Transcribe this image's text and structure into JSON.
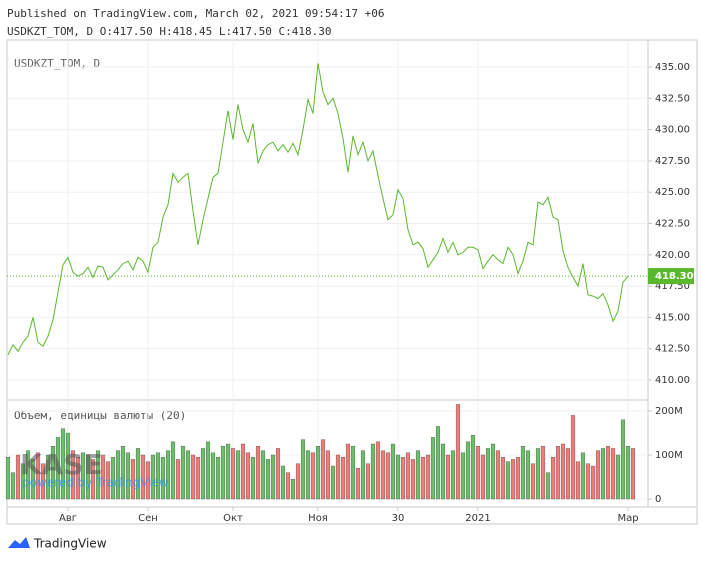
{
  "header": {
    "published": "Published on TradingView.com, March 02, 2021 09:54:17 +06",
    "ohlc": "USDKZT_TOM, D O:417.50 H:418.45 L:417.50 C:418.30"
  },
  "chart_data": [
    {
      "type": "line",
      "legend": "USDKZT_TOM, D",
      "color": "#5ab82e",
      "values": [
        412.0,
        412.8,
        412.3,
        413.0,
        413.5,
        415.0,
        413.0,
        412.7,
        413.5,
        414.8,
        417.0,
        419.2,
        419.8,
        418.6,
        418.3,
        418.5,
        419.0,
        418.2,
        419.1,
        419.0,
        418.0,
        418.4,
        418.8,
        419.3,
        419.5,
        418.8,
        419.8,
        419.5,
        418.6,
        420.6,
        421.0,
        423.0,
        424.0,
        426.5,
        425.8,
        426.2,
        426.5,
        423.5,
        420.8,
        422.8,
        424.5,
        426.2,
        426.5,
        429.0,
        431.5,
        429.2,
        432.0,
        430.0,
        429.0,
        430.5,
        427.3,
        428.3,
        428.8,
        429.0,
        428.3,
        428.8,
        428.2,
        428.9,
        428.0,
        430.0,
        432.4,
        431.3,
        435.3,
        433.0,
        432.0,
        432.5,
        431.3,
        429.3,
        426.6,
        429.5,
        428.0,
        429.0,
        427.5,
        428.3,
        426.3,
        424.5,
        422.8,
        423.2,
        425.2,
        424.5,
        422.0,
        420.8,
        421.0,
        420.5,
        419.0,
        419.6,
        420.2,
        421.3,
        420.2,
        421.0,
        420.0,
        420.2,
        420.6,
        420.6,
        420.4,
        418.9,
        419.5,
        420.0,
        419.6,
        419.3,
        420.6,
        420.0,
        418.5,
        419.5,
        421.0,
        420.8,
        424.2,
        424.0,
        424.6,
        423.0,
        422.8,
        420.3,
        419.0,
        418.2,
        417.5,
        419.3,
        416.8,
        416.7,
        416.5,
        416.9,
        416.0,
        414.7,
        415.5,
        417.8,
        418.3
      ],
      "ylim": [
        408.4,
        437.16
      ],
      "yticks": [
        {
          "value": 410,
          "label": "410.00"
        },
        {
          "value": 412.5,
          "label": "412.50"
        },
        {
          "value": 415,
          "label": "415.00"
        },
        {
          "value": 417.5,
          "label": "417.50"
        },
        {
          "value": 420,
          "label": "420.00"
        },
        {
          "value": 422.5,
          "label": "422.50"
        },
        {
          "value": 425,
          "label": "425.00"
        },
        {
          "value": 427.5,
          "label": "427.50"
        },
        {
          "value": 430,
          "label": "430.00"
        },
        {
          "value": 432.5,
          "label": "432.50"
        },
        {
          "value": 435,
          "label": "435.00"
        }
      ],
      "xlim": [
        -0.2,
        128
      ],
      "xticks": [
        {
          "value": 12,
          "label": "Авг"
        },
        {
          "value": 28,
          "label": "Сен"
        },
        {
          "value": 45,
          "label": "Окт"
        },
        {
          "value": 62,
          "label": "Ноя"
        },
        {
          "value": 78,
          "label": "30"
        },
        {
          "value": 94,
          "label": "2021"
        },
        {
          "value": 124,
          "label": "Мар"
        }
      ],
      "last_price": {
        "value": 418.3,
        "label": "418.30"
      },
      "grid": true
    },
    {
      "type": "bar",
      "title": "Объем, единицы валюты (20)",
      "up_color": "#6cbf6a",
      "down_color": "#f07c7a",
      "values": [
        95,
        60,
        100,
        80,
        110,
        90,
        105,
        80,
        100,
        120,
        140,
        160,
        150,
        110,
        95,
        105,
        100,
        90,
        110,
        100,
        85,
        95,
        110,
        120,
        105,
        90,
        115,
        100,
        85,
        100,
        105,
        95,
        110,
        130,
        90,
        120,
        110,
        100,
        95,
        115,
        130,
        105,
        95,
        120,
        125,
        115,
        110,
        125,
        105,
        95,
        120,
        110,
        90,
        100,
        115,
        75,
        60,
        45,
        80,
        135,
        110,
        105,
        120,
        135,
        110,
        75,
        100,
        95,
        125,
        120,
        70,
        110,
        80,
        125,
        130,
        110,
        105,
        125,
        100,
        95,
        105,
        90,
        110,
        95,
        100,
        140,
        165,
        125,
        100,
        110,
        215,
        105,
        130,
        145,
        120,
        100,
        115,
        125,
        110,
        95,
        85,
        90,
        95,
        120,
        110,
        80,
        115,
        120,
        60,
        95,
        120,
        125,
        115,
        190,
        85,
        105,
        80,
        75,
        110,
        115,
        120,
        115,
        100,
        180,
        120,
        115
      ],
      "ylim": [
        -6.8,
        225
      ],
      "yticks": [
        0,
        {
          "value": 100,
          "label": "100M"
        },
        {
          "value": 200,
          "label": "200M"
        }
      ],
      "xlim": [
        -0.2,
        128
      ]
    }
  ],
  "watermark": {
    "logo": "KASE",
    "tagline": "powered by TradingView"
  },
  "footer": "TradingView"
}
